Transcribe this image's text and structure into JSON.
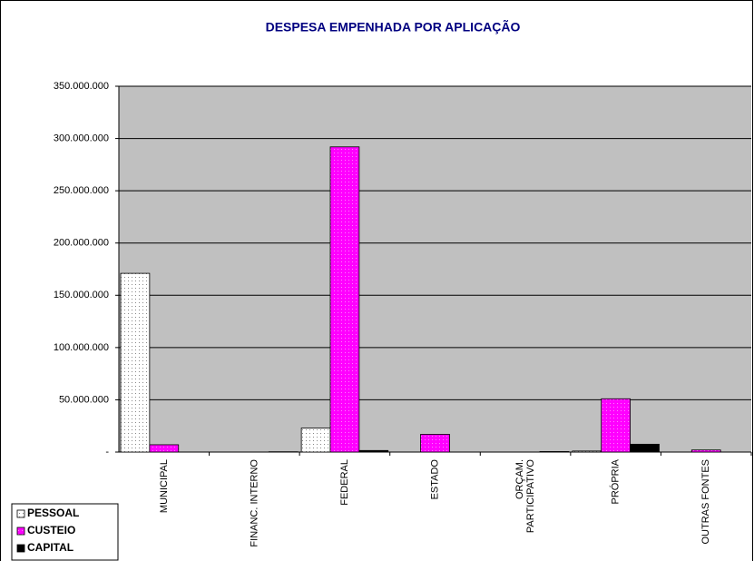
{
  "chart_data": {
    "type": "bar",
    "title": "DESPESA EMPENHADA POR APLICAÇÃO",
    "categories": [
      "MUNICIPAL",
      "FINANC. INTERNO",
      "FEDERAL",
      "ESTADO",
      "ORÇAM.\nPARTICIPATIVO",
      "PRÓPRIA",
      "OUTRAS FONTES"
    ],
    "series": [
      {
        "name": "PESSOAL",
        "color": "#ffffff",
        "values": [
          171000000,
          0,
          23000000,
          0,
          0,
          1000000,
          0
        ]
      },
      {
        "name": "CUSTEIO",
        "color": "#ff00ff",
        "values": [
          7000000,
          0,
          292000000,
          17000000,
          0,
          51000000,
          2000000
        ]
      },
      {
        "name": "CAPITAL",
        "color": "#000000",
        "values": [
          0,
          300000,
          1500000,
          0,
          500000,
          7500000,
          0
        ]
      }
    ],
    "ylim": [
      0,
      350000000
    ],
    "yticks": [
      {
        "value": 0,
        "label": "-"
      },
      {
        "value": 50000000,
        "label": "50.000.000"
      },
      {
        "value": 100000000,
        "label": "100.000.000"
      },
      {
        "value": 150000000,
        "label": "150.000.000"
      },
      {
        "value": 200000000,
        "label": "200.000.000"
      },
      {
        "value": 250000000,
        "label": "250.000.000"
      },
      {
        "value": 300000000,
        "label": "300.000.000"
      },
      {
        "value": 350000000,
        "label": "350.000.000"
      }
    ],
    "grid": true,
    "legend": "bottom-left"
  }
}
